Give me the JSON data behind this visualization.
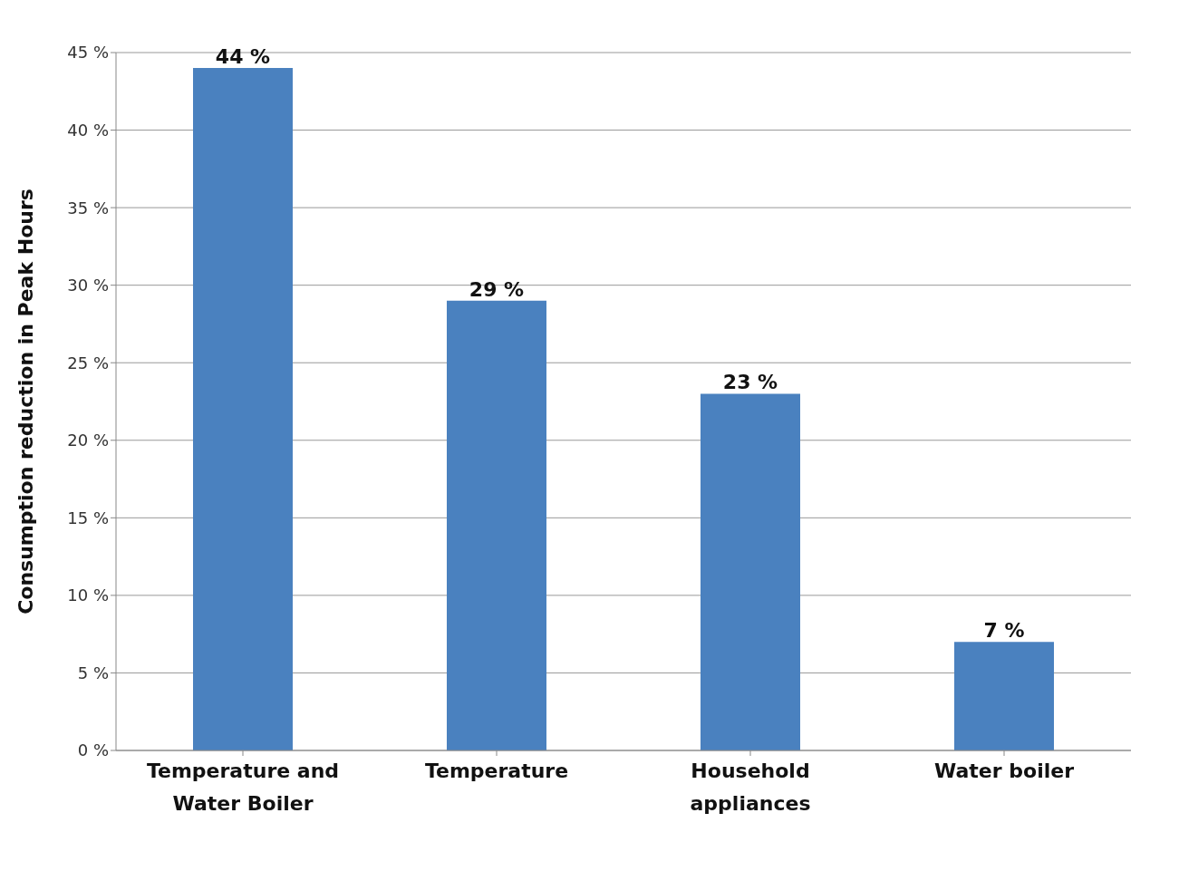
{
  "chart_data": {
    "type": "bar",
    "ylabel": "Consumption reduction in Peak Hours",
    "categories": [
      "Temperature and Water Boiler",
      "Temperature",
      "Household appliances",
      "Water boiler"
    ],
    "values": [
      44,
      29,
      23,
      7
    ],
    "color": "#4a81bf",
    "value_labels": [
      "44 %",
      "29 %",
      "23 %",
      "7 %"
    ],
    "ylim": [
      0,
      45
    ],
    "yticks": [
      {
        "value": 0,
        "label": "0 %"
      },
      {
        "value": 5,
        "label": "5 %"
      },
      {
        "value": 10,
        "label": "10 %"
      },
      {
        "value": 15,
        "label": "15 %"
      },
      {
        "value": 20,
        "label": "20 %"
      },
      {
        "value": 25,
        "label": "25 %"
      },
      {
        "value": 30,
        "label": "30 %"
      },
      {
        "value": 35,
        "label": "35 %"
      },
      {
        "value": 40,
        "label": "40 %"
      },
      {
        "value": 45,
        "label": "45 %"
      }
    ],
    "grid": "y"
  }
}
